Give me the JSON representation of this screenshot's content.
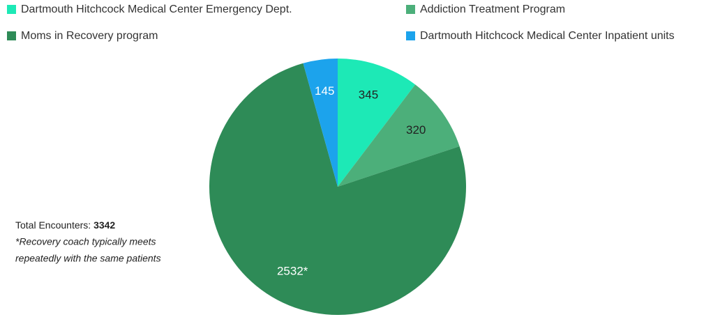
{
  "chart_data": {
    "type": "pie",
    "categories": [
      "Dartmouth Hitchcock Medical Center Emergency Dept.",
      "Addiction Treatment Program",
      "Moms in Recovery program",
      "Dartmouth Hitchcock Medical Center Inpatient units"
    ],
    "values": [
      345,
      320,
      2532,
      145
    ],
    "value_labels": [
      "345",
      "320",
      "2532*",
      "145"
    ],
    "colors": [
      "#1de9b6",
      "#4caf7a",
      "#2e8b57",
      "#1ca3ec"
    ],
    "label_colors": [
      "#222222",
      "#222222",
      "#ffffff",
      "#ffffff"
    ],
    "annotation": {
      "total_label": "Total Encounters:",
      "total": 3342,
      "note": [
        "*Recovery coach typically meets",
        "repeatedly with the same patients"
      ]
    }
  }
}
